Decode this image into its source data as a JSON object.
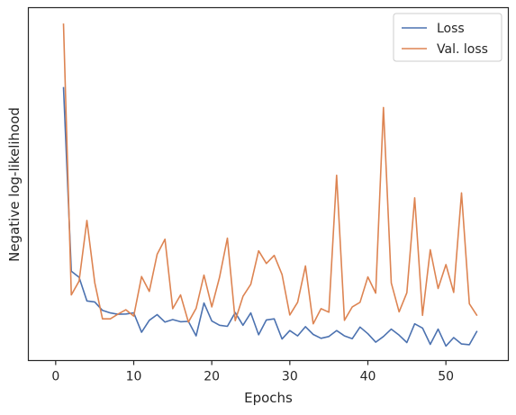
{
  "chart_data": {
    "type": "line",
    "xlabel": "Epochs",
    "ylabel": "Negative log-likelihood",
    "xlim": [
      -3.5,
      58
    ],
    "ylim": [
      0.0,
      1.0
    ],
    "xticks": [
      0,
      10,
      20,
      30,
      40,
      50
    ],
    "y_tick_labels_shown": false,
    "grid": false,
    "legend_position": "top-right",
    "series": [
      {
        "name": "Loss",
        "color": "#4c72b0",
        "x": [
          1,
          2,
          3,
          4,
          5,
          6,
          7,
          8,
          9,
          10,
          11,
          12,
          13,
          14,
          15,
          16,
          17,
          18,
          19,
          20,
          21,
          22,
          23,
          24,
          25,
          26,
          27,
          28,
          29,
          30,
          31,
          32,
          33,
          34,
          35,
          36,
          37,
          38,
          39,
          40,
          41,
          42,
          43,
          44,
          45,
          46,
          47,
          48,
          49,
          50,
          51,
          52,
          53,
          54
        ],
        "y": [
          0.775,
          0.253,
          0.236,
          0.169,
          0.166,
          0.142,
          0.135,
          0.131,
          0.132,
          0.135,
          0.08,
          0.114,
          0.13,
          0.109,
          0.116,
          0.11,
          0.111,
          0.07,
          0.163,
          0.112,
          0.1,
          0.097,
          0.136,
          0.1,
          0.135,
          0.073,
          0.115,
          0.118,
          0.061,
          0.085,
          0.07,
          0.096,
          0.074,
          0.063,
          0.068,
          0.085,
          0.07,
          0.062,
          0.095,
          0.076,
          0.052,
          0.068,
          0.089,
          0.072,
          0.051,
          0.104,
          0.092,
          0.046,
          0.089,
          0.041,
          0.065,
          0.047,
          0.045,
          0.084
        ]
      },
      {
        "name": "Val. loss",
        "color": "#dd8452",
        "x": [
          1,
          2,
          3,
          4,
          5,
          6,
          7,
          8,
          9,
          10,
          11,
          12,
          13,
          14,
          15,
          16,
          17,
          18,
          19,
          20,
          21,
          22,
          23,
          24,
          25,
          26,
          27,
          28,
          29,
          30,
          31,
          32,
          33,
          34,
          35,
          36,
          37,
          38,
          39,
          40,
          41,
          42,
          43,
          44,
          45,
          46,
          47,
          48,
          49,
          50,
          51,
          52,
          53,
          54
        ],
        "y": [
          0.955,
          0.186,
          0.225,
          0.397,
          0.221,
          0.118,
          0.118,
          0.132,
          0.144,
          0.126,
          0.238,
          0.196,
          0.301,
          0.344,
          0.147,
          0.186,
          0.109,
          0.148,
          0.242,
          0.152,
          0.236,
          0.347,
          0.113,
          0.182,
          0.216,
          0.311,
          0.275,
          0.298,
          0.244,
          0.129,
          0.165,
          0.268,
          0.104,
          0.147,
          0.137,
          0.525,
          0.114,
          0.152,
          0.165,
          0.237,
          0.191,
          0.717,
          0.22,
          0.138,
          0.192,
          0.461,
          0.128,
          0.314,
          0.204,
          0.272,
          0.193,
          0.475,
          0.161,
          0.127
        ]
      }
    ]
  }
}
